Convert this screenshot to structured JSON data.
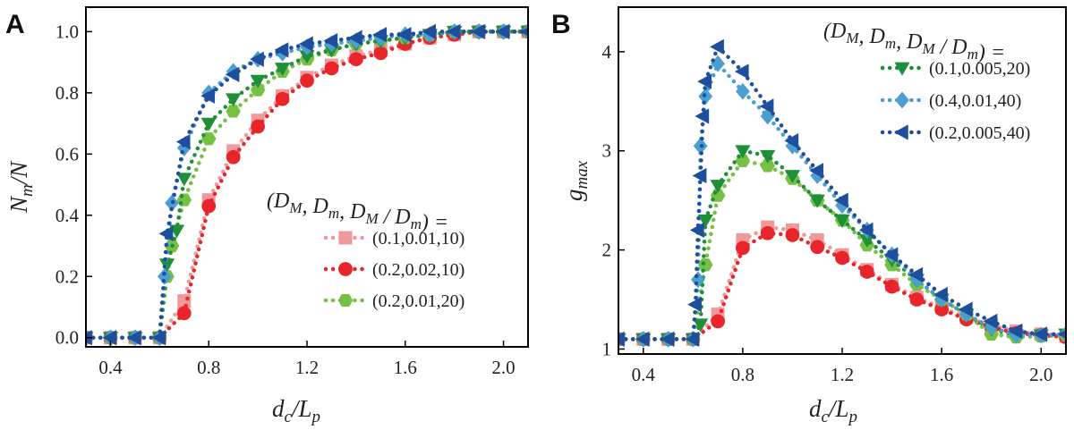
{
  "chart_data": [
    {
      "panel": "A",
      "type": "line",
      "markers": true,
      "xlabel": "d_c/L_p",
      "ylabel": "N_m/N",
      "xlim": [
        0.3,
        2.1
      ],
      "ylim": [
        -0.03,
        1.08
      ],
      "xticks": [
        "0.4",
        "0.8",
        "1.2",
        "1.6",
        "2.0"
      ],
      "yticks": [
        "0.0",
        "0.2",
        "0.4",
        "0.6",
        "0.8",
        "1.0"
      ],
      "legend_title": "(D_M, D_m, D_M / D_m) =",
      "legend_position": "center-right",
      "series": [
        {
          "name": "(0.1,0.01,10)",
          "color": "#f0999b",
          "marker": "square",
          "x": [
            0.3,
            0.4,
            0.5,
            0.6,
            0.7,
            0.8,
            0.9,
            1.0,
            1.1,
            1.2,
            1.3,
            1.4,
            1.5,
            1.6,
            1.7,
            1.8,
            1.9,
            2.0,
            2.1
          ],
          "y": [
            0.0,
            0.0,
            0.0,
            0.0,
            0.12,
            0.45,
            0.61,
            0.71,
            0.79,
            0.85,
            0.89,
            0.92,
            0.94,
            0.96,
            0.98,
            0.99,
            1.0,
            1.0,
            1.0
          ]
        },
        {
          "name": "(0.2,0.02,10)",
          "color": "#e8252b",
          "marker": "circle",
          "x": [
            0.3,
            0.4,
            0.5,
            0.6,
            0.7,
            0.8,
            0.9,
            1.0,
            1.1,
            1.2,
            1.3,
            1.4,
            1.5,
            1.6,
            1.7,
            1.8,
            1.9,
            2.0,
            2.1
          ],
          "y": [
            0.0,
            0.0,
            0.0,
            0.0,
            0.08,
            0.43,
            0.59,
            0.69,
            0.78,
            0.84,
            0.88,
            0.91,
            0.93,
            0.96,
            0.98,
            0.99,
            1.0,
            1.0,
            1.0
          ]
        },
        {
          "name": "(0.2,0.01,20)",
          "color": "#76c043",
          "marker": "hexagon",
          "x": [
            0.3,
            0.4,
            0.5,
            0.6,
            0.63,
            0.65,
            0.7,
            0.8,
            0.9,
            1.0,
            1.1,
            1.2,
            1.3,
            1.4,
            1.5,
            1.6,
            1.7,
            1.8,
            1.9,
            2.0,
            2.1
          ],
          "y": [
            0.0,
            0.0,
            0.0,
            0.0,
            0.2,
            0.3,
            0.45,
            0.65,
            0.74,
            0.81,
            0.87,
            0.91,
            0.94,
            0.96,
            0.97,
            0.98,
            0.99,
            1.0,
            1.0,
            1.0,
            1.0
          ]
        },
        {
          "name": "(0.1,0.005,20)",
          "color": "#1f8f3a",
          "marker": "triangle-down",
          "in_legend": false,
          "x": [
            0.3,
            0.4,
            0.5,
            0.6,
            0.63,
            0.67,
            0.7,
            0.8,
            0.9,
            1.0,
            1.1,
            1.2,
            1.3,
            1.4,
            1.5,
            1.6,
            1.7,
            1.8,
            1.9,
            2.0,
            2.1
          ],
          "y": [
            0.0,
            0.0,
            0.0,
            0.0,
            0.24,
            0.35,
            0.52,
            0.7,
            0.78,
            0.84,
            0.88,
            0.92,
            0.94,
            0.96,
            0.97,
            0.98,
            0.99,
            1.0,
            1.0,
            1.0,
            1.0
          ]
        },
        {
          "name": "(0.4,0.01,40)",
          "color": "#4b9ed0",
          "marker": "diamond",
          "in_legend": false,
          "x": [
            0.3,
            0.4,
            0.5,
            0.6,
            0.62,
            0.65,
            0.7,
            0.8,
            0.9,
            1.0,
            1.1,
            1.2,
            1.3,
            1.4,
            1.5,
            1.6,
            1.7,
            1.8,
            1.9,
            2.0,
            2.1
          ],
          "y": [
            0.0,
            0.0,
            0.0,
            0.0,
            0.2,
            0.44,
            0.62,
            0.8,
            0.87,
            0.91,
            0.93,
            0.95,
            0.96,
            0.97,
            0.98,
            0.99,
            0.99,
            1.0,
            1.0,
            1.0,
            1.0
          ]
        },
        {
          "name": "(0.2,0.005,40)",
          "color": "#1f4e9c",
          "marker": "triangle-left",
          "in_legend": false,
          "x": [
            0.3,
            0.4,
            0.5,
            0.6,
            0.63,
            0.7,
            0.8,
            0.9,
            1.0,
            1.1,
            1.2,
            1.3,
            1.4,
            1.5,
            1.6,
            1.7,
            1.8,
            1.9,
            2.0,
            2.1
          ],
          "y": [
            0.0,
            0.0,
            0.0,
            0.0,
            0.34,
            0.64,
            0.79,
            0.86,
            0.91,
            0.94,
            0.96,
            0.97,
            0.98,
            0.99,
            0.99,
            1.0,
            1.0,
            1.0,
            1.0,
            1.0
          ]
        }
      ]
    },
    {
      "panel": "B",
      "type": "line",
      "markers": true,
      "xlabel": "d_c/L_p",
      "ylabel": "g_max",
      "xlim": [
        0.3,
        2.1
      ],
      "ylim": [
        0.95,
        4.45
      ],
      "xticks": [
        "0.4",
        "0.8",
        "1.2",
        "1.6",
        "2.0"
      ],
      "yticks": [
        "1",
        "2",
        "3",
        "4"
      ],
      "legend_title": "(D_M, D_m, D_M / D_m) =",
      "legend_position": "top-right",
      "series": [
        {
          "name": "(0.1,0.01,10)",
          "color": "#f0999b",
          "marker": "square",
          "in_legend": false,
          "x": [
            0.3,
            0.4,
            0.5,
            0.6,
            0.7,
            0.8,
            0.9,
            1.0,
            1.1,
            1.2,
            1.3,
            1.4,
            1.5,
            1.6,
            1.7,
            1.8,
            1.9,
            2.0,
            2.1
          ],
          "y": [
            1.1,
            1.1,
            1.1,
            1.1,
            1.35,
            2.1,
            2.23,
            2.2,
            2.1,
            1.95,
            1.8,
            1.65,
            1.52,
            1.42,
            1.32,
            1.24,
            1.18,
            1.15,
            1.13
          ]
        },
        {
          "name": "(0.2,0.02,10)",
          "color": "#e8252b",
          "marker": "circle",
          "in_legend": false,
          "x": [
            0.3,
            0.4,
            0.5,
            0.6,
            0.7,
            0.8,
            0.9,
            1.0,
            1.1,
            1.2,
            1.3,
            1.4,
            1.5,
            1.6,
            1.7,
            1.8,
            1.9,
            2.0,
            2.1
          ],
          "y": [
            1.1,
            1.1,
            1.1,
            1.1,
            1.28,
            2.02,
            2.17,
            2.15,
            2.03,
            1.92,
            1.78,
            1.63,
            1.5,
            1.4,
            1.3,
            1.22,
            1.16,
            1.14,
            1.12
          ]
        },
        {
          "name": "(0.2,0.01,20)",
          "color": "#76c043",
          "marker": "hexagon",
          "in_legend": false,
          "x": [
            0.3,
            0.4,
            0.5,
            0.6,
            0.65,
            0.7,
            0.8,
            0.9,
            1.0,
            1.1,
            1.2,
            1.3,
            1.4,
            1.5,
            1.6,
            1.7,
            1.8,
            1.9,
            2.0,
            2.1
          ],
          "y": [
            1.1,
            1.1,
            1.1,
            1.1,
            1.85,
            2.55,
            2.9,
            2.85,
            2.72,
            2.5,
            2.3,
            2.05,
            1.85,
            1.65,
            1.5,
            1.35,
            1.15,
            1.12,
            1.13,
            1.14
          ]
        },
        {
          "name": "(0.1,0.005,20)",
          "color": "#1f8f3a",
          "marker": "triangle-down",
          "x": [
            0.3,
            0.4,
            0.5,
            0.6,
            0.63,
            0.65,
            0.7,
            0.8,
            0.9,
            1.0,
            1.1,
            1.2,
            1.3,
            1.4,
            1.5,
            1.6,
            1.7,
            1.8,
            1.9,
            2.0,
            2.1
          ],
          "y": [
            1.1,
            1.1,
            1.1,
            1.1,
            1.25,
            2.3,
            2.65,
            3.0,
            2.95,
            2.75,
            2.5,
            2.3,
            2.1,
            1.9,
            1.7,
            1.5,
            1.35,
            1.2,
            1.14,
            1.14,
            1.15
          ]
        },
        {
          "name": "(0.4,0.01,40)",
          "color": "#4b9ed0",
          "marker": "diamond",
          "x": [
            0.3,
            0.4,
            0.5,
            0.6,
            0.62,
            0.63,
            0.65,
            0.7,
            0.8,
            0.9,
            1.0,
            1.1,
            1.2,
            1.3,
            1.4,
            1.5,
            1.6,
            1.7,
            1.8,
            1.9,
            2.0,
            2.1
          ],
          "y": [
            1.1,
            1.1,
            1.1,
            1.1,
            1.7,
            3.05,
            3.55,
            3.88,
            3.6,
            3.35,
            3.05,
            2.75,
            2.45,
            2.2,
            1.95,
            1.7,
            1.5,
            1.35,
            1.22,
            1.14,
            1.14,
            1.15
          ]
        },
        {
          "name": "(0.2,0.005,40)",
          "color": "#1f4e9c",
          "marker": "triangle-left",
          "x": [
            0.3,
            0.4,
            0.5,
            0.6,
            0.61,
            0.62,
            0.63,
            0.64,
            0.65,
            0.7,
            0.8,
            0.9,
            1.0,
            1.1,
            1.2,
            1.3,
            1.4,
            1.5,
            1.6,
            1.7,
            1.8,
            1.9,
            2.0,
            2.1
          ],
          "y": [
            1.1,
            1.1,
            1.1,
            1.1,
            1.45,
            2.2,
            2.75,
            3.35,
            3.7,
            4.05,
            3.8,
            3.45,
            3.1,
            2.8,
            2.5,
            2.2,
            1.95,
            1.75,
            1.55,
            1.4,
            1.28,
            1.18,
            1.15,
            1.15
          ]
        }
      ]
    }
  ],
  "labels": {
    "panel_a": "A",
    "panel_b": "B",
    "xlabel_main": "d",
    "xlabel_sub": "c",
    "xlabel_div": "/",
    "xlabel_main2": "L",
    "xlabel_sub2": "p",
    "ylabel_a_main": "N",
    "ylabel_a_sub": "m",
    "ylabel_a_rest": "/N",
    "ylabel_b_main": "g",
    "ylabel_b_sub": "max"
  }
}
